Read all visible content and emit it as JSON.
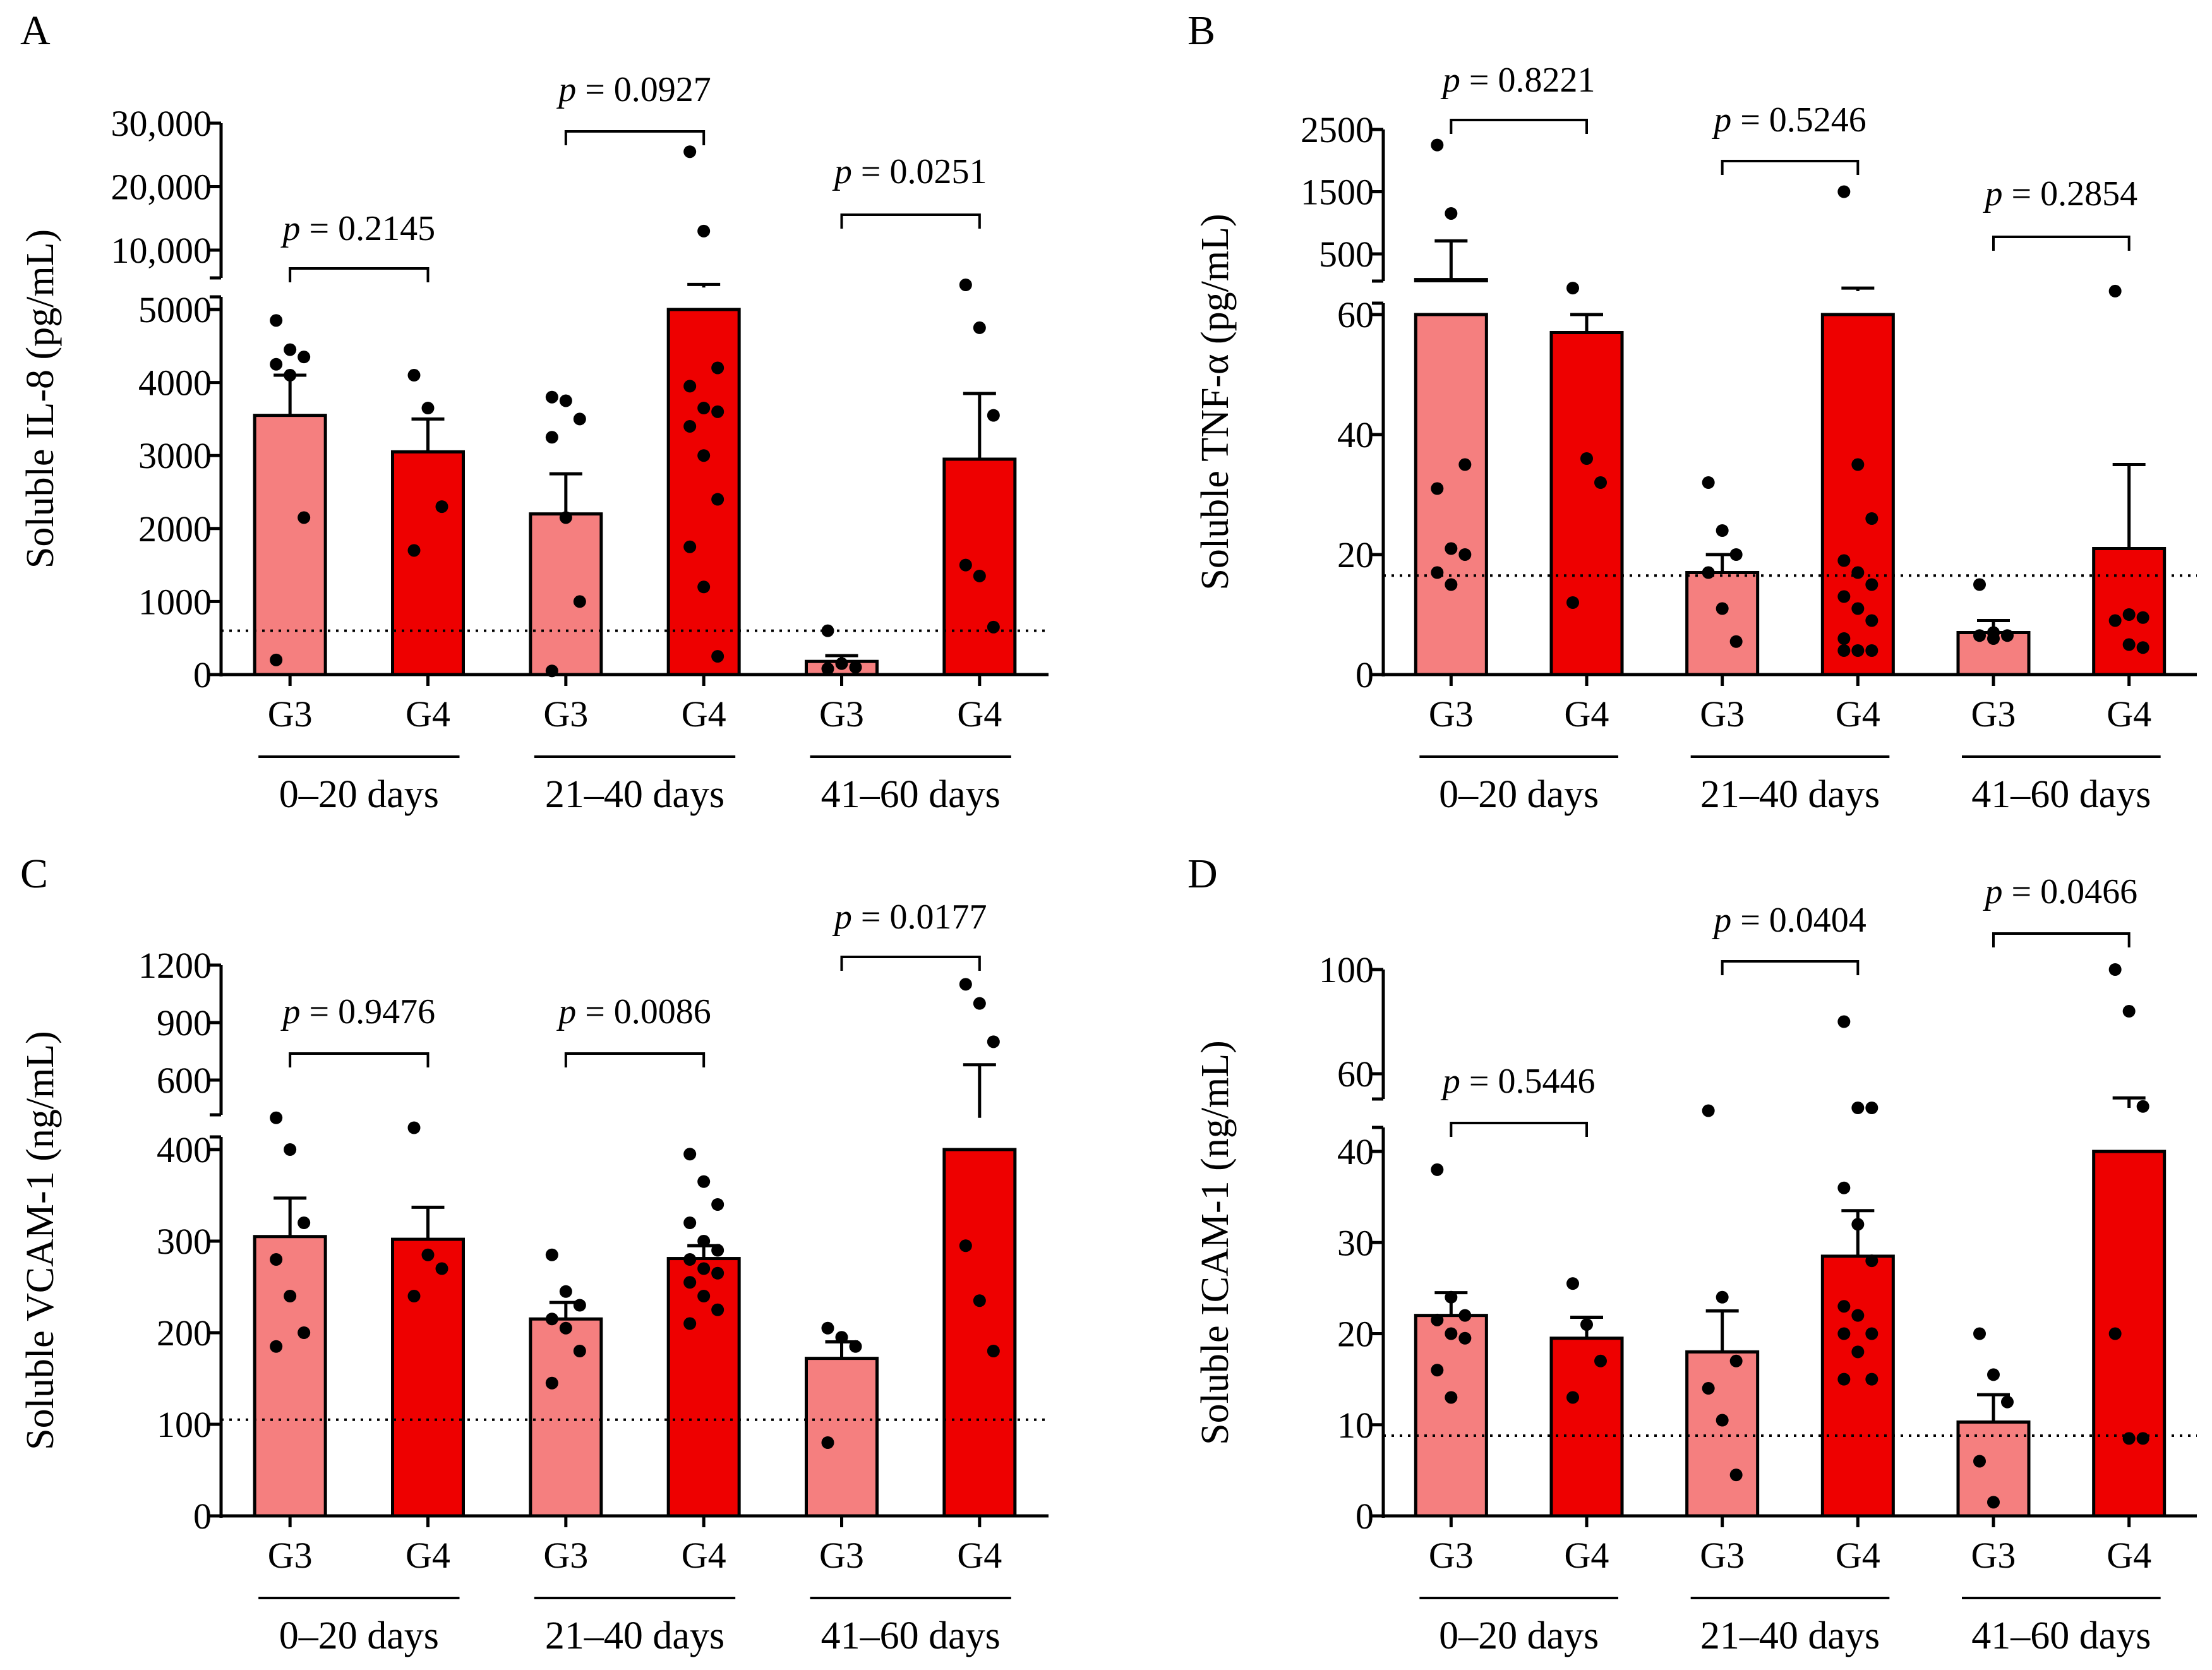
{
  "figure": {
    "group_labels": [
      "G3",
      "G4"
    ],
    "period_labels": [
      "0–20 days",
      "21–40 days",
      "41–60 days"
    ],
    "colors": {
      "g3_fill": "#f57f7f",
      "g4_fill": "#ee0000",
      "stroke": "#000000"
    }
  },
  "chart_data": [
    {
      "panel": "A",
      "type": "bar",
      "ylabel": "Soluble IL-8 (pg/mL)",
      "axis_broken": true,
      "lower_ticks": [
        0,
        1000,
        2000,
        3000,
        4000,
        5000
      ],
      "upper_ticks": [
        10000,
        20000,
        30000
      ],
      "upper_tick_labels": [
        "10,000",
        "20,000",
        "30,000"
      ],
      "lower_ylim": [
        0,
        5000
      ],
      "upper_ylim": [
        5000,
        30000
      ],
      "detection_limit": 600,
      "categories": [
        "G3 0–20 days",
        "G4 0–20 days",
        "G3 21–40 days",
        "G4 21–40 days",
        "G3 41–60 days",
        "G4 41–60 days"
      ],
      "means": [
        3550,
        3050,
        2200,
        6800,
        180,
        2950
      ],
      "sem": [
        550,
        450,
        550,
        800,
        80,
        900
      ],
      "points": [
        [
          4850,
          4450,
          4350,
          4250,
          4100,
          2150,
          200
        ],
        [
          4100,
          3650,
          2300,
          1700
        ],
        [
          3800,
          3750,
          3500,
          3250,
          2150,
          1000,
          50
        ],
        [
          25500,
          13000,
          4200,
          3950,
          3650,
          3600,
          3400,
          3000,
          2400,
          1750,
          1200,
          250
        ],
        [
          600,
          150,
          100,
          80
        ],
        [
          7500,
          4750,
          3550,
          1500,
          1350,
          650
        ]
      ],
      "comparisons": [
        {
          "label": "p = 0.2145",
          "value": "0.2145"
        },
        {
          "label": "p = 0.0927",
          "value": "0.0927"
        },
        {
          "label": "p = 0.0251",
          "value": "0.0251"
        }
      ]
    },
    {
      "panel": "B",
      "type": "bar",
      "ylabel": "Soluble TNF-α (pg/mL)",
      "axis_broken": true,
      "lower_ticks": [
        0,
        20,
        40,
        60
      ],
      "upper_ticks": [
        500,
        1500,
        2500
      ],
      "upper_tick_labels": [
        "500",
        "1500",
        "2500"
      ],
      "lower_ylim": [
        0,
        60
      ],
      "upper_ylim": [
        60,
        2500
      ],
      "detection_limit": 16.5,
      "categories": [
        "G3 0–20 days",
        "G4 0–20 days",
        "G3 21–40 days",
        "G4 21–40 days",
        "G3 41–60 days",
        "G4 41–60 days"
      ],
      "means": [
        480,
        57,
        17,
        250,
        7,
        21
      ],
      "sem": [
        230,
        3,
        3,
        60,
        2,
        14
      ],
      "points": [
        [
          2250,
          1150,
          35,
          31,
          21,
          20,
          17,
          15
        ],
        [
          310,
          36,
          32,
          12
        ],
        [
          32,
          24,
          20,
          17,
          11,
          5.5
        ],
        [
          1500,
          35,
          26,
          19,
          17,
          15,
          13,
          11,
          9,
          6,
          4,
          4,
          4
        ],
        [
          15,
          7,
          6.5,
          6.5,
          6
        ],
        [
          250,
          10,
          9.5,
          9,
          5,
          4.5
        ]
      ],
      "comparisons": [
        {
          "label": "p = 0.8221",
          "value": "0.8221"
        },
        {
          "label": "p = 0.5246",
          "value": "0.5246"
        },
        {
          "label": "p = 0.2854",
          "value": "0.2854"
        }
      ]
    },
    {
      "panel": "C",
      "type": "bar",
      "ylabel": "Soluble VCAM-1 (ng/mL)",
      "axis_broken": true,
      "lower_ticks": [
        0,
        100,
        200,
        300,
        400
      ],
      "upper_ticks": [
        600,
        900,
        1200
      ],
      "upper_tick_labels": [
        "600",
        "900",
        "1200"
      ],
      "lower_ylim": [
        0,
        400
      ],
      "upper_ylim": [
        400,
        1200
      ],
      "detection_limit": 105,
      "categories": [
        "G3 0–20 days",
        "G4 0–20 days",
        "G3 21–40 days",
        "G4 21–40 days",
        "G3 41–60 days",
        "G4 41–60 days"
      ],
      "means": [
        305,
        302,
        215,
        281,
        172,
        550
      ],
      "sem": [
        42,
        35,
        18,
        14,
        18,
        130
      ],
      "points": [
        [
          550,
          400,
          320,
          280,
          240,
          200,
          185
        ],
        [
          460,
          285,
          270,
          240
        ],
        [
          285,
          245,
          230,
          215,
          205,
          180,
          145
        ],
        [
          395,
          365,
          340,
          320,
          300,
          290,
          280,
          270,
          265,
          255,
          240,
          225,
          210
        ],
        [
          205,
          195,
          185,
          80
        ],
        [
          1100,
          1000,
          800,
          295,
          235,
          180
        ]
      ],
      "comparisons": [
        {
          "label": "p = 0.9476",
          "value": "0.9476"
        },
        {
          "label": "p = 0.0086",
          "value": "0.0086"
        },
        {
          "label": "p = 0.0177",
          "value": "0.0177"
        }
      ]
    },
    {
      "panel": "D",
      "type": "bar",
      "ylabel": "Soluble ICAM-1 (ng/mL)",
      "axis_broken": true,
      "lower_ticks": [
        0,
        10,
        20,
        30,
        40
      ],
      "upper_ticks": [
        60,
        100
      ],
      "upper_tick_labels": [
        "60",
        "100"
      ],
      "lower_ylim": [
        0,
        40
      ],
      "upper_ylim": [
        40,
        100
      ],
      "detection_limit": 8.8,
      "categories": [
        "G3 0–20 days",
        "G4 0–20 days",
        "G3 21–40 days",
        "G4 21–40 days",
        "G3 41–60 days",
        "G4 41–60 days"
      ],
      "means": [
        22,
        19.5,
        18,
        28.5,
        10.3,
        52
      ],
      "sem": [
        2.5,
        2.3,
        4.5,
        5,
        3,
        7
      ],
      "points": [
        [
          38,
          24,
          22,
          21.5,
          20,
          19.5,
          16,
          13
        ],
        [
          25.5,
          21,
          17,
          13
        ],
        [
          50,
          24,
          17,
          14,
          10.5,
          4.5
        ],
        [
          80,
          52,
          52,
          36,
          32,
          28,
          23,
          22,
          20,
          20,
          18,
          15,
          15
        ],
        [
          20,
          15.5,
          12.5,
          6,
          1.5
        ],
        [
          100,
          84,
          53,
          20,
          8.5,
          8.5
        ]
      ],
      "comparisons": [
        {
          "label": "p = 0.5446",
          "value": "0.5446"
        },
        {
          "label": "p = 0.0404",
          "value": "0.0404"
        },
        {
          "label": "p = 0.0466",
          "value": "0.0466"
        }
      ]
    }
  ]
}
